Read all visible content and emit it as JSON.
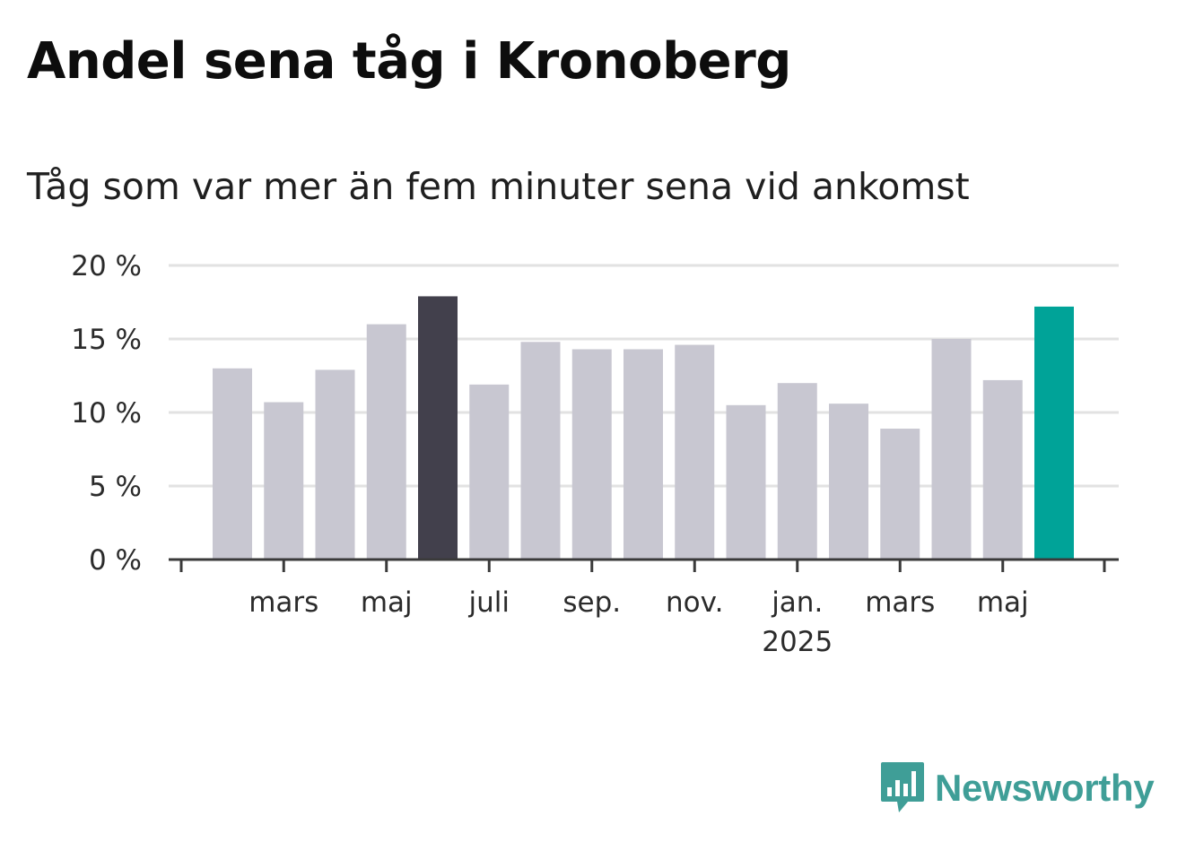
{
  "header": {
    "title": "Andel sena tåg i Kronoberg",
    "subtitle": "Tåg som var mer än fem minuter sena vid ankomst"
  },
  "brand": {
    "name": "Newsworthy",
    "color": "#3f9e97"
  },
  "colors": {
    "default_bar": "#c8c7d1",
    "highlight_max": "#42404c",
    "highlight_latest": "#00a398",
    "axis": "#3a3a3a",
    "grid": "#e2e2e2"
  },
  "chart_data": {
    "type": "bar",
    "title": "Andel sena tåg i Kronoberg",
    "subtitle": "Tåg som var mer än fem minuter sena vid ankomst",
    "xlabel": "",
    "ylabel": "",
    "unit": "%",
    "ylim": [
      0,
      20
    ],
    "yticks": [
      0,
      5,
      10,
      15,
      20
    ],
    "ytick_labels": [
      "0 %",
      "5 %",
      "10 %",
      "15 %",
      "20 %"
    ],
    "grid": true,
    "categories": [
      "2024-02",
      "2024-03",
      "2024-04",
      "2024-05",
      "2024-06",
      "2024-07",
      "2024-08",
      "2024-09",
      "2024-10",
      "2024-11",
      "2024-12",
      "2025-01",
      "2025-02",
      "2025-03",
      "2025-04",
      "2025-05",
      "2025-06"
    ],
    "values": [
      13.0,
      10.7,
      12.9,
      16.0,
      17.9,
      11.9,
      14.8,
      14.3,
      14.3,
      14.6,
      10.5,
      12.0,
      10.6,
      8.9,
      15.0,
      12.2,
      17.2
    ],
    "highlights": {
      "max": "2024-06",
      "latest": "2025-06"
    },
    "xtick_labels": [
      {
        "category": "2024-03",
        "label": "mars"
      },
      {
        "category": "2024-05",
        "label": "maj"
      },
      {
        "category": "2024-07",
        "label": "juli"
      },
      {
        "category": "2024-09",
        "label": "sep."
      },
      {
        "category": "2024-11",
        "label": "nov."
      },
      {
        "category": "2025-01",
        "label": "jan.",
        "sublabel": "2025"
      },
      {
        "category": "2025-03",
        "label": "mars"
      },
      {
        "category": "2025-05",
        "label": "maj"
      }
    ]
  }
}
